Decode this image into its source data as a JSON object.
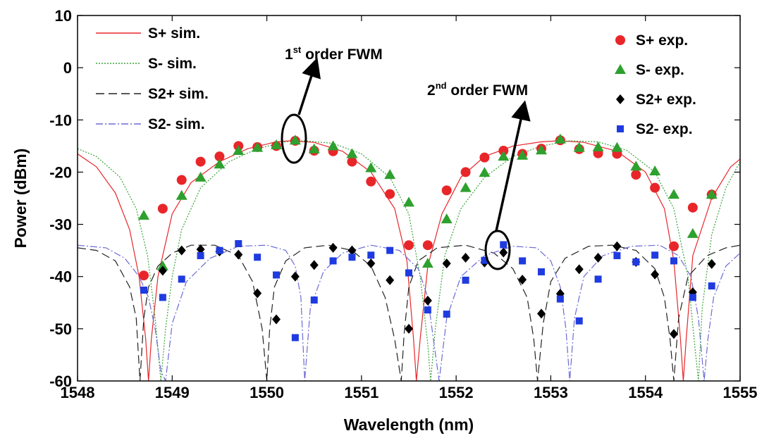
{
  "chart_data": {
    "type": "scatter",
    "xlabel": "Wavelength (nm)",
    "ylabel": "Power (dBm)",
    "xlim": [
      1548,
      1555
    ],
    "ylim": [
      -60,
      10
    ],
    "x_ticks": [
      "1548",
      "1549",
      "1550",
      "1551",
      "1552",
      "1553",
      "1554",
      "1555"
    ],
    "y_ticks": [
      "10",
      "0",
      "-10",
      "-20",
      "-30",
      "-40",
      "-50",
      "-60"
    ],
    "grid": false,
    "legend_sim_placement": "top-left",
    "legend_exp_placement": "top-right",
    "lines": [
      {
        "name": "S+ sim.",
        "color": "#e8262a",
        "dash": "solid",
        "x": [
          1548.0,
          1548.2,
          1548.4,
          1548.55,
          1548.65,
          1548.72,
          1548.75,
          1548.78,
          1548.85,
          1549.0,
          1549.2,
          1549.5,
          1549.8,
          1550.1,
          1550.25,
          1550.5,
          1550.8,
          1551.1,
          1551.35,
          1551.48,
          1551.55,
          1551.58,
          1551.62,
          1551.7,
          1551.85,
          1552.05,
          1552.3,
          1552.6,
          1552.9,
          1553.1,
          1553.35,
          1553.7,
          1554.0,
          1554.2,
          1554.3,
          1554.37,
          1554.4,
          1554.43,
          1554.5,
          1554.7,
          1554.9,
          1555.0
        ],
        "y": [
          -16.5,
          -19,
          -24,
          -31,
          -40,
          -52,
          -60,
          -52,
          -40,
          -28,
          -22,
          -18,
          -15.5,
          -14.2,
          -14,
          -14.3,
          -16,
          -20,
          -27,
          -37,
          -52,
          -60,
          -52,
          -38,
          -28,
          -21,
          -17,
          -15,
          -14.2,
          -14,
          -14.3,
          -16,
          -20,
          -27,
          -37,
          -52,
          -60,
          -52,
          -36,
          -25,
          -19,
          -17.5
        ]
      },
      {
        "name": "S- sim.",
        "color": "#3aa33a",
        "dash": "2,2",
        "x": [
          1548.0,
          1548.2,
          1548.45,
          1548.62,
          1548.74,
          1548.82,
          1548.88,
          1548.93,
          1549.0,
          1549.1,
          1549.3,
          1549.6,
          1549.9,
          1550.2,
          1550.4,
          1550.7,
          1551.0,
          1551.3,
          1551.5,
          1551.62,
          1551.7,
          1551.73,
          1551.78,
          1551.88,
          1552.05,
          1552.3,
          1552.6,
          1552.9,
          1553.2,
          1553.5,
          1553.8,
          1554.1,
          1554.3,
          1554.45,
          1554.52,
          1554.56,
          1554.6,
          1554.7,
          1554.85,
          1555.0
        ],
        "y": [
          -15.5,
          -17,
          -21,
          -27,
          -36,
          -48,
          -60,
          -50,
          -40,
          -31,
          -23,
          -18,
          -15.5,
          -14.2,
          -14,
          -14.5,
          -16.5,
          -21,
          -28,
          -40,
          -53,
          -60,
          -50,
          -36,
          -27,
          -21,
          -17,
          -15,
          -14,
          -14.2,
          -15.8,
          -20,
          -27,
          -40,
          -53,
          -60,
          -46,
          -32,
          -23,
          -18
        ]
      },
      {
        "name": "S2+ sim.",
        "color": "#222222",
        "dash": "12,6",
        "x": [
          1548.0,
          1548.2,
          1548.4,
          1548.55,
          1548.62,
          1548.66,
          1548.7,
          1548.75,
          1548.85,
          1549.0,
          1549.2,
          1549.45,
          1549.7,
          1549.85,
          1549.95,
          1550.0,
          1550.03,
          1550.08,
          1550.2,
          1550.4,
          1550.65,
          1550.9,
          1551.1,
          1551.25,
          1551.35,
          1551.42,
          1551.45,
          1551.5,
          1551.6,
          1551.8,
          1552.1,
          1552.4,
          1552.6,
          1552.75,
          1552.82,
          1552.86,
          1552.92,
          1553.0,
          1553.15,
          1553.4,
          1553.65,
          1553.9,
          1554.1,
          1554.2,
          1554.26,
          1554.3,
          1554.35,
          1554.45,
          1554.65,
          1554.85,
          1555.0
        ],
        "y": [
          -34.5,
          -35,
          -37,
          -42,
          -48,
          -60,
          -48,
          -42,
          -38,
          -35.5,
          -34,
          -34,
          -36,
          -41,
          -50,
          -60,
          -50,
          -42,
          -37,
          -34.5,
          -34,
          -35,
          -38,
          -44,
          -52,
          -60,
          -51,
          -42,
          -37,
          -34.5,
          -34,
          -35.5,
          -38.5,
          -44,
          -52,
          -60,
          -49,
          -41,
          -36.5,
          -34.2,
          -34,
          -35,
          -38.5,
          -44,
          -52,
          -60,
          -48,
          -40,
          -36,
          -34.5,
          -34
        ]
      },
      {
        "name": "S2- sim.",
        "color": "#6b6bd6",
        "dash": "10,3,2,3",
        "x": [
          1548.0,
          1548.3,
          1548.5,
          1548.65,
          1548.75,
          1548.82,
          1548.88,
          1548.93,
          1549.0,
          1549.15,
          1549.4,
          1549.7,
          1550.0,
          1550.2,
          1550.3,
          1550.36,
          1550.4,
          1550.46,
          1550.6,
          1550.8,
          1551.1,
          1551.4,
          1551.6,
          1551.7,
          1551.76,
          1551.82,
          1551.9,
          1552.05,
          1552.3,
          1552.6,
          1552.85,
          1553.0,
          1553.1,
          1553.16,
          1553.2,
          1553.25,
          1553.35,
          1553.55,
          1553.85,
          1554.15,
          1554.35,
          1554.48,
          1554.56,
          1554.62,
          1554.66,
          1554.72,
          1554.85,
          1555.0
        ],
        "y": [
          -34,
          -34.5,
          -36.5,
          -40,
          -44,
          -50,
          -58,
          -60,
          -49,
          -41,
          -36.5,
          -34.2,
          -34,
          -35,
          -38,
          -44,
          -60,
          -46,
          -39,
          -35.5,
          -34,
          -35,
          -38.5,
          -44,
          -52,
          -60,
          -48,
          -40,
          -36,
          -34.2,
          -34.5,
          -37,
          -42,
          -50,
          -60,
          -48,
          -40,
          -36,
          -34.2,
          -34,
          -36,
          -40,
          -48,
          -60,
          -52,
          -44,
          -38,
          -35.5
        ]
      }
    ],
    "points": [
      {
        "name": "S+ exp.",
        "color": "#e8262a",
        "marker": "circle",
        "x": [
          1548.7,
          1548.9,
          1549.1,
          1549.3,
          1549.5,
          1549.7,
          1549.9,
          1550.1,
          1550.3,
          1550.5,
          1550.7,
          1550.9,
          1551.1,
          1551.3,
          1551.5,
          1551.7,
          1551.9,
          1552.1,
          1552.3,
          1552.5,
          1552.7,
          1552.9,
          1553.1,
          1553.3,
          1553.5,
          1553.7,
          1553.9,
          1554.1,
          1554.3,
          1554.5,
          1554.7
        ],
        "y": [
          -39.8,
          -27,
          -21.5,
          -18,
          -17,
          -15,
          -15.2,
          -15,
          -14,
          -15.9,
          -16,
          -18,
          -21.8,
          -24.2,
          -34,
          -34,
          -23.5,
          -20,
          -17.2,
          -15.9,
          -16.5,
          -15.5,
          -13.9,
          -15.6,
          -16.4,
          -16.5,
          -20.5,
          -23,
          -34.2,
          -26.8,
          -24.3
        ]
      },
      {
        "name": "S- exp.",
        "color": "#2ea02e",
        "marker": "triangle",
        "x": [
          1548.7,
          1548.9,
          1549.1,
          1549.3,
          1549.5,
          1549.7,
          1549.9,
          1550.1,
          1550.3,
          1550.5,
          1550.7,
          1550.9,
          1551.1,
          1551.3,
          1551.5,
          1551.7,
          1551.9,
          1552.1,
          1552.3,
          1552.5,
          1552.7,
          1552.9,
          1553.1,
          1553.3,
          1553.5,
          1553.7,
          1553.9,
          1554.1,
          1554.3,
          1554.5,
          1554.7
        ],
        "y": [
          -28.3,
          -38,
          -24.5,
          -21,
          -18.5,
          -15.9,
          -15.3,
          -14.8,
          -13.9,
          -15.6,
          -15,
          -16.5,
          -19.2,
          -20.5,
          -25.8,
          -37.5,
          -29,
          -23,
          -20.1,
          -17,
          -16.8,
          -15.8,
          -13.7,
          -15.3,
          -15.2,
          -15.3,
          -18.9,
          -19.8,
          -24.3,
          -31.8,
          -24.3
        ]
      },
      {
        "name": "S2+ exp.",
        "color": "#000000",
        "marker": "diamond",
        "x": [
          1548.9,
          1549.1,
          1549.3,
          1549.5,
          1549.7,
          1549.9,
          1550.1,
          1550.3,
          1550.5,
          1550.7,
          1550.9,
          1551.1,
          1551.3,
          1551.5,
          1551.7,
          1551.9,
          1552.1,
          1552.3,
          1552.5,
          1552.7,
          1552.9,
          1553.1,
          1553.3,
          1553.5,
          1553.7,
          1553.9,
          1554.1,
          1554.3,
          1554.5,
          1554.7
        ],
        "y": [
          -38.9,
          -35,
          -34.8,
          -35.2,
          -35.8,
          -43.2,
          -48.2,
          -40,
          -37.8,
          -34.5,
          -35,
          -37.5,
          -40.7,
          -50,
          -44.6,
          -37.5,
          -36.4,
          -37.3,
          -35.4,
          -40.6,
          -47.1,
          -43.3,
          -38.6,
          -36.4,
          -34.2,
          -37.2,
          -39.6,
          -51,
          -43,
          -37.6
        ]
      },
      {
        "name": "S2- exp.",
        "color": "#1f3be0",
        "marker": "square",
        "x": [
          1548.7,
          1548.9,
          1549.1,
          1549.3,
          1549.5,
          1549.7,
          1549.9,
          1550.1,
          1550.3,
          1550.5,
          1550.7,
          1550.9,
          1551.1,
          1551.3,
          1551.5,
          1551.7,
          1551.9,
          1552.1,
          1552.3,
          1552.5,
          1552.7,
          1552.9,
          1553.1,
          1553.3,
          1553.5,
          1553.7,
          1553.9,
          1554.1,
          1554.3,
          1554.5,
          1554.7
        ],
        "y": [
          -42.6,
          -44,
          -40.5,
          -36,
          -35,
          -33.7,
          -36.3,
          -39.7,
          -51.7,
          -44.5,
          -37,
          -36.3,
          -35.9,
          -35,
          -39.3,
          -46.4,
          -47.2,
          -40.7,
          -36.9,
          -33.9,
          -37,
          -39.1,
          -44.3,
          -48.5,
          -40.5,
          -36,
          -37.2,
          -35.9,
          -37,
          -44,
          -41.8
        ]
      }
    ],
    "annotations": [
      {
        "base": "1",
        "sup": "st",
        "rest": " order FWM"
      },
      {
        "base": "2",
        "sup": "nd",
        "rest": " order FWM"
      }
    ]
  }
}
